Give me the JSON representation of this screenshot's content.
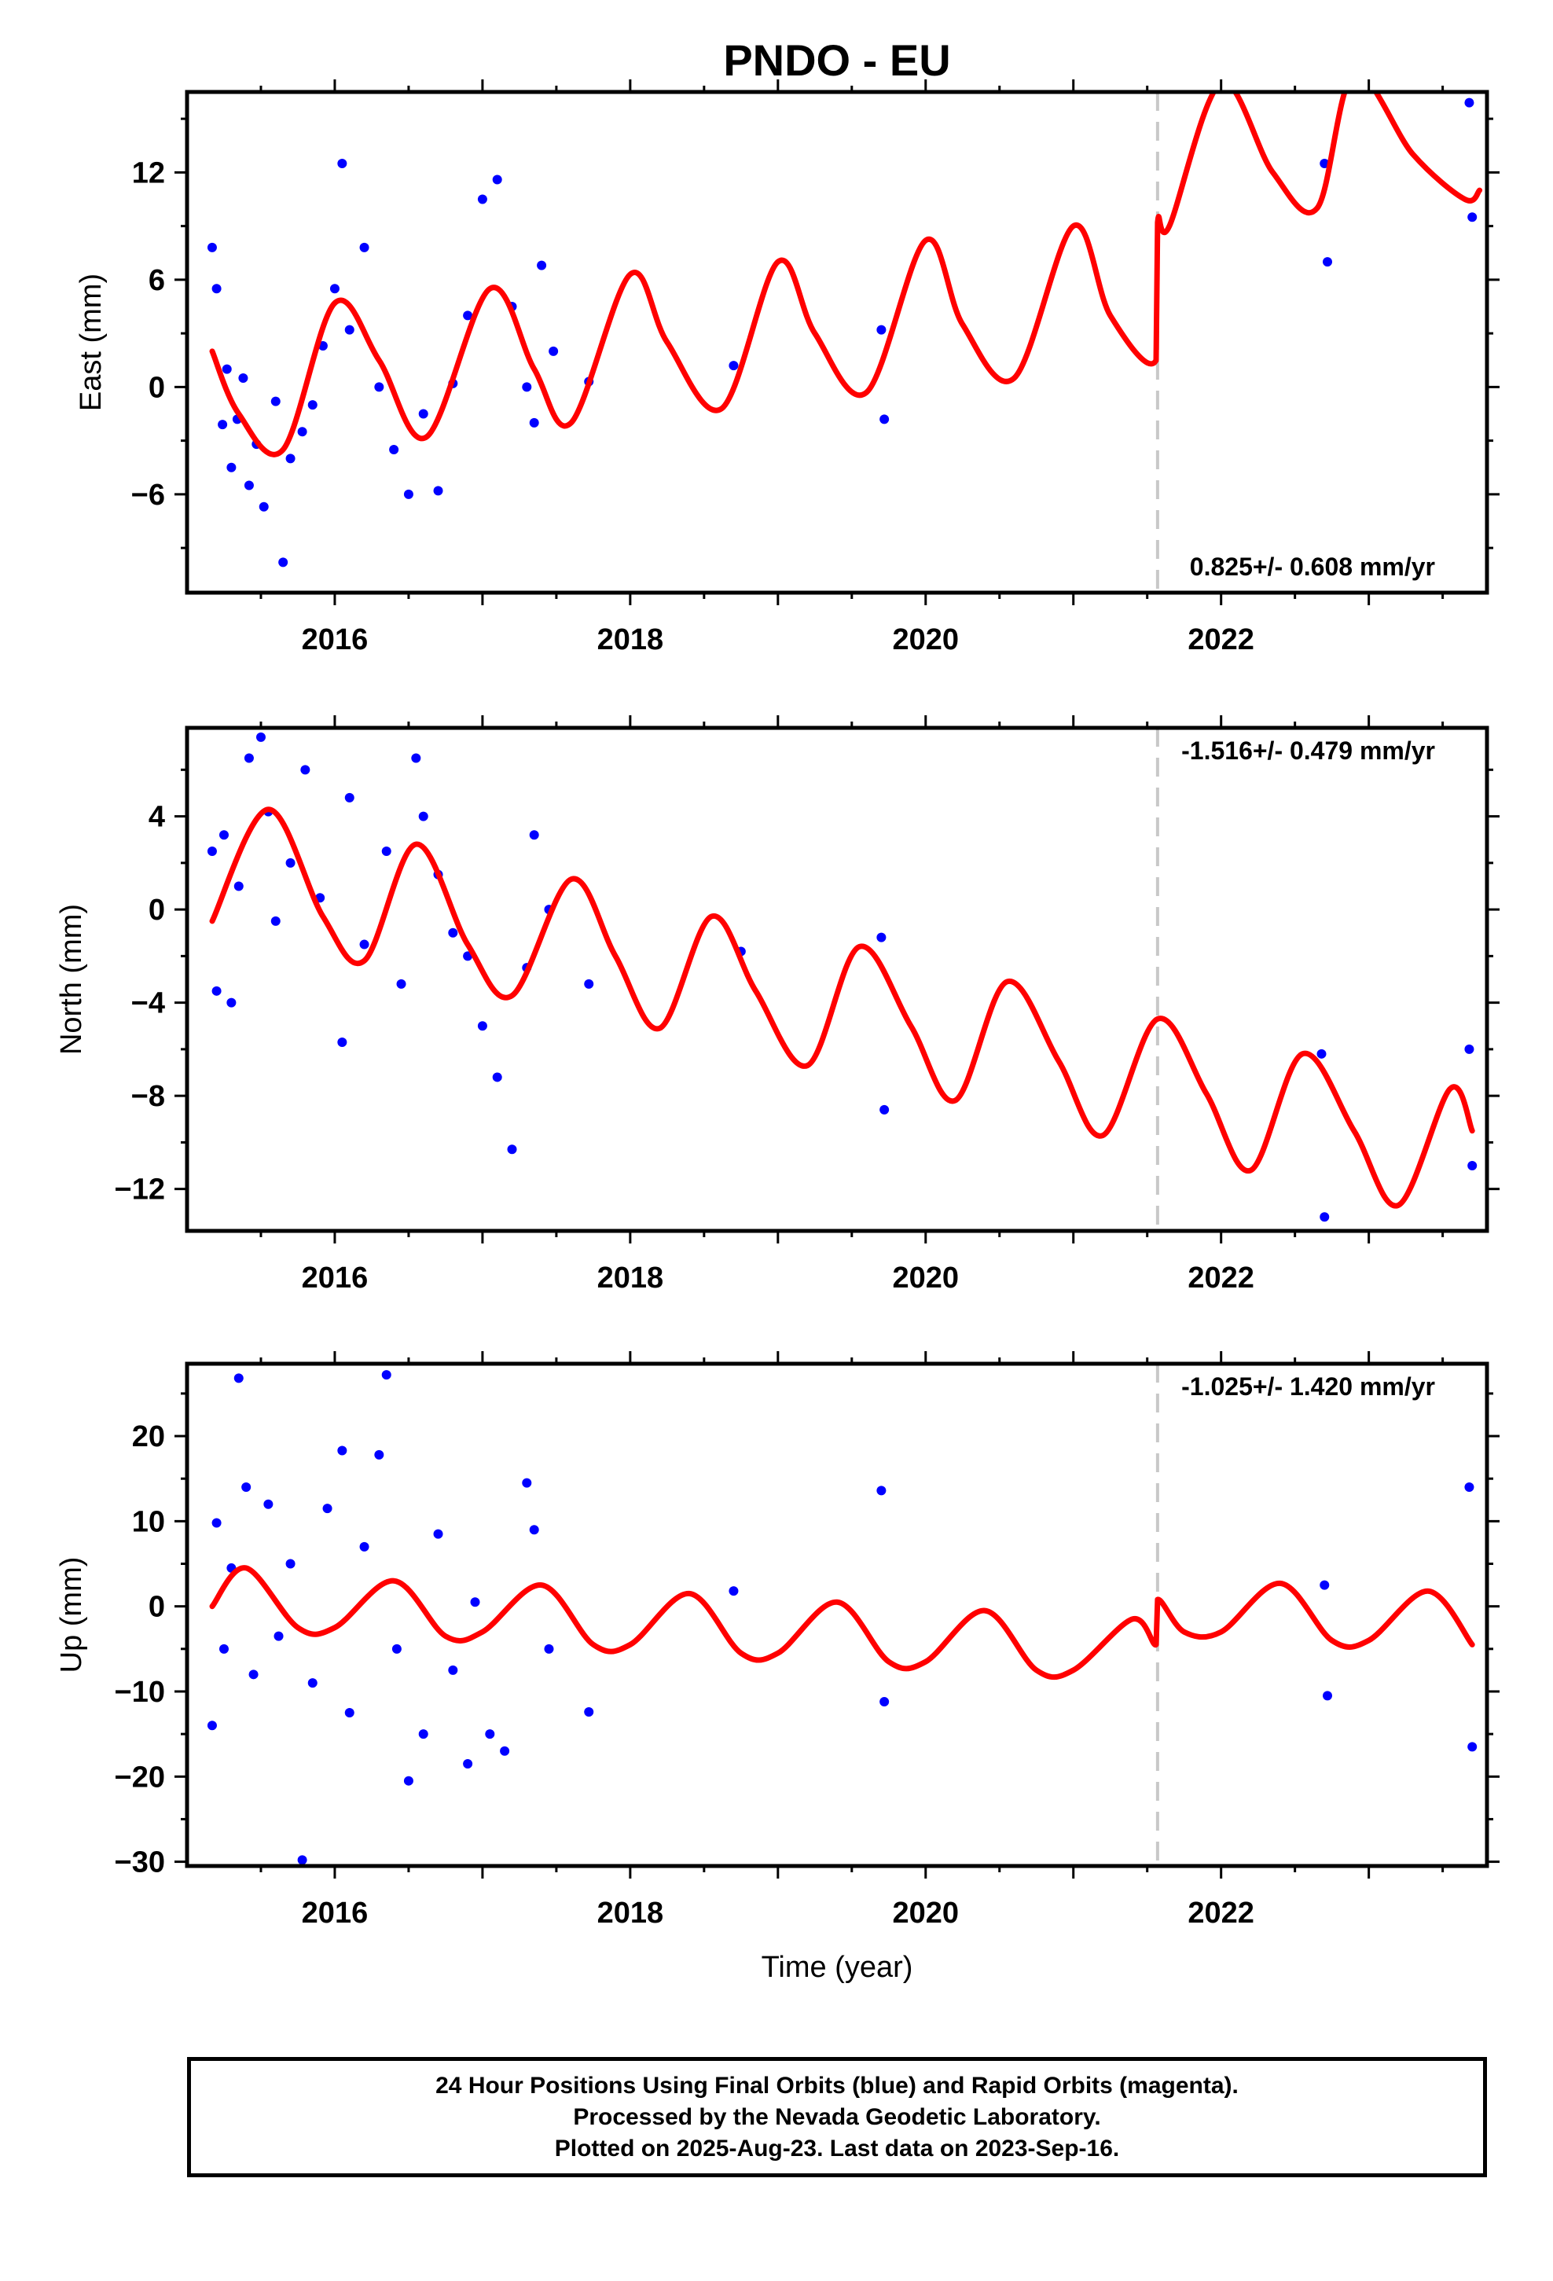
{
  "title": "PNDO - EU",
  "xlabel": "Time (year)",
  "x_ticks": [
    2016,
    2018,
    2020,
    2022
  ],
  "x_range": [
    2015.0,
    2023.8
  ],
  "equipment_change_year": 2021.57,
  "colors": {
    "points": "#0000ff",
    "model": "#ff0000",
    "dashed": "#c8c8c8",
    "axis": "#000000"
  },
  "chart_data": [
    {
      "type": "scatter",
      "name": "East",
      "ylabel": "East (mm)",
      "ylim": [
        -11.5,
        16.5
      ],
      "y_ticks": [
        12,
        6,
        0,
        -6
      ],
      "rate": "0.825+/- 0.608 mm/yr",
      "rate_pos": "bottom-right",
      "points_x": [
        2015.17,
        2015.2,
        2015.24,
        2015.27,
        2015.3,
        2015.34,
        2015.38,
        2015.42,
        2015.47,
        2015.52,
        2015.6,
        2015.65,
        2015.7,
        2015.78,
        2015.85,
        2015.92,
        2016.0,
        2016.05,
        2016.1,
        2016.2,
        2016.3,
        2016.4,
        2016.5,
        2016.6,
        2016.7,
        2016.8,
        2016.9,
        2017.0,
        2017.1,
        2017.2,
        2017.3,
        2017.35,
        2017.4,
        2017.48,
        2017.72,
        2018.7,
        2019.7,
        2019.72,
        2022.7,
        2022.72,
        2023.68,
        2023.7
      ],
      "points_y": [
        7.8,
        5.5,
        -2.1,
        1.0,
        -4.5,
        -1.8,
        0.5,
        -5.5,
        -3.2,
        -6.7,
        -0.8,
        -9.8,
        -4.0,
        -2.5,
        -1.0,
        2.3,
        5.5,
        12.5,
        3.2,
        7.8,
        0.0,
        -3.5,
        -6.0,
        -1.5,
        -5.8,
        0.2,
        4.0,
        10.5,
        11.6,
        4.5,
        0.0,
        -2.0,
        6.8,
        2.0,
        0.3,
        1.2,
        3.2,
        -1.8,
        12.5,
        7.0,
        15.9,
        9.5
      ],
      "model_x": [
        2015.17,
        2015.35,
        2015.65,
        2016.0,
        2016.3,
        2016.62,
        2017.05,
        2017.35,
        2017.6,
        2018.0,
        2018.25,
        2018.62,
        2019.0,
        2019.25,
        2019.6,
        2020.0,
        2020.25,
        2020.6,
        2021.0,
        2021.25,
        2021.56,
        2021.57,
        2021.65,
        2022.0,
        2022.35,
        2022.65,
        2022.9,
        2023.3,
        2023.65,
        2023.75
      ],
      "model_y": [
        2.0,
        -1.5,
        -3.5,
        4.7,
        1.5,
        -2.8,
        5.5,
        1.0,
        -2.0,
        6.3,
        2.5,
        -1.2,
        7.0,
        3.0,
        -0.3,
        8.2,
        3.5,
        0.5,
        9.0,
        4.0,
        1.5,
        9.2,
        9.0,
        17.0,
        12.0,
        10.0,
        17.5,
        13.0,
        10.5,
        11.0
      ]
    },
    {
      "type": "scatter",
      "name": "North",
      "ylabel": "North (mm)",
      "ylim": [
        -13.8,
        7.8
      ],
      "y_ticks": [
        4,
        0,
        -4,
        -8,
        -12
      ],
      "rate": "-1.516+/- 0.479 mm/yr",
      "rate_pos": "top-right",
      "points_x": [
        2015.17,
        2015.2,
        2015.25,
        2015.3,
        2015.35,
        2015.42,
        2015.5,
        2015.55,
        2015.6,
        2015.7,
        2015.8,
        2015.9,
        2016.05,
        2016.1,
        2016.2,
        2016.35,
        2016.45,
        2016.55,
        2016.6,
        2016.7,
        2016.8,
        2016.9,
        2017.0,
        2017.1,
        2017.2,
        2017.3,
        2017.35,
        2017.45,
        2017.72,
        2018.75,
        2019.7,
        2019.72,
        2022.68,
        2022.7,
        2023.68,
        2023.7
      ],
      "points_y": [
        2.5,
        -3.5,
        3.2,
        -4.0,
        1.0,
        6.5,
        7.4,
        4.2,
        -0.5,
        2.0,
        6.0,
        0.5,
        -5.7,
        4.8,
        -1.5,
        2.5,
        -3.2,
        6.5,
        4.0,
        1.5,
        -1.0,
        -2.0,
        -5.0,
        -7.2,
        -10.3,
        -2.5,
        3.2,
        0.0,
        -3.2,
        -1.8,
        -1.2,
        -8.6,
        -6.2,
        -13.2,
        -6.0,
        -11.0
      ],
      "model_x": [
        2015.17,
        2015.55,
        2015.92,
        2016.2,
        2016.55,
        2016.9,
        2017.2,
        2017.6,
        2017.9,
        2018.2,
        2018.55,
        2018.85,
        2019.2,
        2019.55,
        2019.9,
        2020.2,
        2020.55,
        2020.9,
        2021.2,
        2021.57,
        2021.9,
        2022.2,
        2022.55,
        2022.9,
        2023.2,
        2023.55,
        2023.7
      ],
      "model_y": [
        -0.5,
        4.3,
        -0.3,
        -2.2,
        2.8,
        -1.5,
        -3.7,
        1.3,
        -2.0,
        -5.1,
        -0.3,
        -3.5,
        -6.7,
        -1.6,
        -5.0,
        -8.2,
        -3.1,
        -6.5,
        -9.7,
        -4.7,
        -7.9,
        -11.2,
        -6.2,
        -9.5,
        -12.7,
        -7.7,
        -9.5
      ]
    },
    {
      "type": "scatter",
      "name": "Up",
      "ylabel": "Up (mm)",
      "ylim": [
        -30.5,
        28.5
      ],
      "y_ticks": [
        20,
        10,
        0,
        -10,
        -20,
        -30
      ],
      "rate": "-1.025+/- 1.420 mm/yr",
      "rate_pos": "top-right",
      "points_x": [
        2015.17,
        2015.2,
        2015.25,
        2015.3,
        2015.35,
        2015.4,
        2015.45,
        2015.55,
        2015.62,
        2015.7,
        2015.78,
        2015.85,
        2015.95,
        2016.05,
        2016.1,
        2016.2,
        2016.3,
        2016.35,
        2016.42,
        2016.5,
        2016.6,
        2016.7,
        2016.8,
        2016.9,
        2016.95,
        2017.05,
        2017.15,
        2017.3,
        2017.35,
        2017.45,
        2017.72,
        2018.7,
        2019.7,
        2019.72,
        2022.7,
        2022.72,
        2023.68,
        2023.7
      ],
      "points_y": [
        -14.0,
        9.8,
        -5.0,
        4.5,
        26.8,
        14.0,
        -8.0,
        12.0,
        -3.5,
        5.0,
        -29.8,
        -9.0,
        11.5,
        18.3,
        -12.5,
        7.0,
        17.8,
        27.2,
        -5.0,
        -20.5,
        -15.0,
        8.5,
        -7.5,
        -18.5,
        0.5,
        -15.0,
        -17.0,
        14.5,
        9.0,
        -5.0,
        -12.4,
        1.8,
        13.6,
        -11.2,
        2.5,
        -10.5,
        14.0,
        -16.5
      ],
      "model_x": [
        2015.17,
        2015.4,
        2015.75,
        2016.0,
        2016.4,
        2016.75,
        2017.0,
        2017.4,
        2017.75,
        2018.0,
        2018.4,
        2018.75,
        2019.0,
        2019.4,
        2019.75,
        2020.0,
        2020.4,
        2020.75,
        2021.0,
        2021.4,
        2021.56,
        2021.57,
        2021.75,
        2022.0,
        2022.4,
        2022.75,
        2023.0,
        2023.4,
        2023.7
      ],
      "model_y": [
        0.0,
        4.5,
        -2.5,
        -2.5,
        3.0,
        -3.5,
        -3.0,
        2.5,
        -4.5,
        -4.5,
        1.5,
        -5.5,
        -5.5,
        0.5,
        -6.5,
        -6.5,
        -0.5,
        -7.5,
        -7.5,
        -1.5,
        -4.5,
        0.8,
        -3.0,
        -3.0,
        2.7,
        -4.0,
        -4.0,
        1.8,
        -4.5
      ]
    }
  ],
  "footer": {
    "line1": "24 Hour Positions Using Final Orbits (blue) and Rapid Orbits (magenta).",
    "line2": "Processed by the Nevada Geodetic Laboratory.",
    "line3": "Plotted on 2025-Aug-23. Last data on 2023-Sep-16."
  }
}
